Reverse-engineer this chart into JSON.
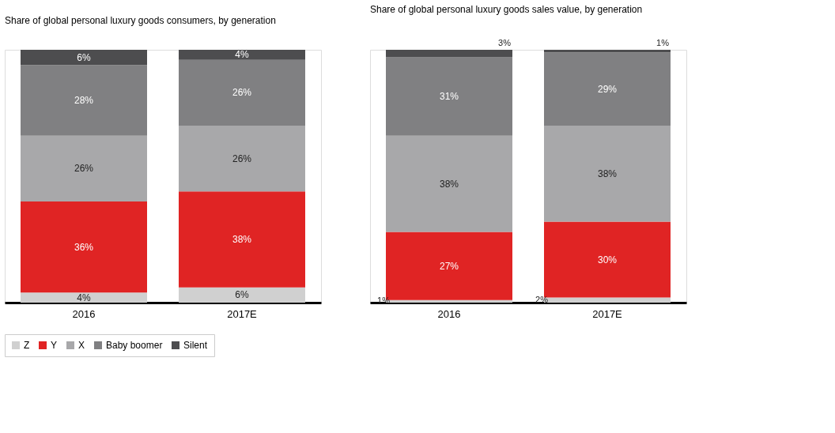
{
  "chart_data": [
    {
      "type": "bar",
      "stacked": true,
      "legend": "bottom",
      "grid": false,
      "title": "Share of global personal luxury goods consumers, by generation",
      "categories": [
        "2016",
        "2017E"
      ],
      "series": [
        {
          "name": "Z",
          "color": "#d0d0d0",
          "values": [
            4,
            6
          ],
          "value_labels": [
            "4%",
            "6%"
          ]
        },
        {
          "name": "Y",
          "color": "#e02424",
          "values": [
            36,
            38
          ],
          "value_labels": [
            "36%",
            "38%"
          ]
        },
        {
          "name": "X",
          "color": "#a8a8aa",
          "values": [
            26,
            26
          ],
          "value_labels": [
            "26%",
            "26%"
          ]
        },
        {
          "name": "Baby boomer",
          "color": "#808082",
          "values": [
            28,
            26
          ],
          "value_labels": [
            "28%",
            "26%"
          ]
        },
        {
          "name": "Silent",
          "color": "#4d4d4f",
          "values": [
            6,
            4
          ],
          "value_labels": [
            "6%",
            "4%"
          ]
        }
      ]
    },
    {
      "type": "bar",
      "stacked": true,
      "legend": "bottom",
      "grid": false,
      "title": "Share of global personal luxury goods sales value, by generation",
      "categories": [
        "2016",
        "2017E"
      ],
      "series": [
        {
          "name": "Z",
          "color": "#d0d0d0",
          "values": [
            1,
            2
          ],
          "value_labels": [
            "1%",
            "2%"
          ]
        },
        {
          "name": "Y",
          "color": "#e02424",
          "values": [
            27,
            30
          ],
          "value_labels": [
            "27%",
            "30%"
          ]
        },
        {
          "name": "X",
          "color": "#a8a8aa",
          "values": [
            38,
            38
          ],
          "value_labels": [
            "38%",
            "38%"
          ]
        },
        {
          "name": "Baby boomer",
          "color": "#808082",
          "values": [
            31,
            29
          ],
          "value_labels": [
            "31%",
            "29%"
          ]
        },
        {
          "name": "Silent",
          "color": "#4d4d4f",
          "values": [
            3,
            1
          ],
          "value_labels": [
            "3%",
            "1%"
          ]
        }
      ]
    }
  ]
}
